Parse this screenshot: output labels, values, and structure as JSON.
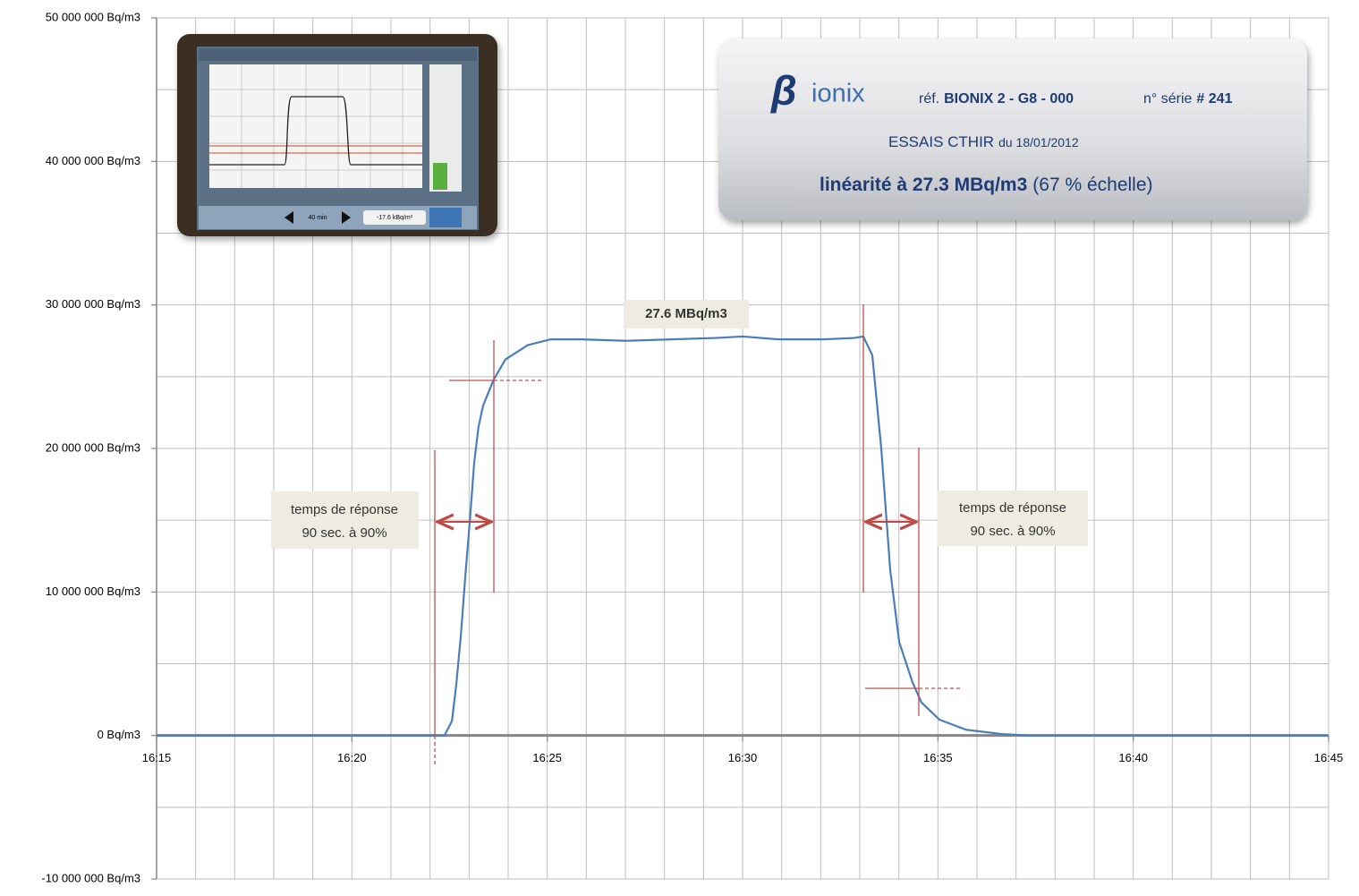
{
  "chart_data": {
    "type": "line",
    "x": [
      975,
      982.37,
      982.56,
      982.67,
      982.79,
      982.9,
      983.02,
      983.13,
      983.24,
      983.36,
      983.63,
      983.93,
      984.5,
      985.08,
      985.88,
      987.02,
      988.17,
      989.31,
      990.0,
      990.92,
      992.06,
      992.86,
      993.09,
      993.32,
      993.55,
      993.78,
      994.01,
      994.35,
      994.58,
      995.04,
      995.72,
      996.64,
      997.33,
      1005
    ],
    "series": [
      {
        "color": "#4a7ebb",
        "values": [
          0,
          0,
          1000000,
          3500000,
          7000000,
          11000000,
          15000000,
          19000000,
          21500000,
          23000000,
          24800000,
          26200000,
          27200000,
          27600000,
          27600000,
          27500000,
          27600000,
          27700000,
          27800000,
          27600000,
          27600000,
          27700000,
          27800000,
          26500000,
          20000000,
          11500000,
          6500000,
          3700000,
          2300000,
          1100000,
          400000,
          100000,
          0,
          0
        ]
      }
    ],
    "xlim": [
      975,
      1005
    ],
    "xticks": [
      {
        "value": 975,
        "label": "16:15"
      },
      {
        "value": 980,
        "label": "16:20"
      },
      {
        "value": 985,
        "label": "16:25"
      },
      {
        "value": 990,
        "label": "16:30"
      },
      {
        "value": 995,
        "label": "16:35"
      },
      {
        "value": 1000,
        "label": "16:40"
      },
      {
        "value": 1005,
        "label": "16:45"
      }
    ],
    "ylim": [
      -10000000,
      50000000
    ],
    "yticks": [
      {
        "value": -10000000,
        "label": "-10 000 000 Bq/m3"
      },
      {
        "value": 0,
        "label": "0 Bq/m3"
      },
      {
        "value": 10000000,
        "label": "10 000 000 Bq/m3"
      },
      {
        "value": 20000000,
        "label": "20 000 000 Bq/m3"
      },
      {
        "value": 30000000,
        "label": "30 000 000 Bq/m3"
      },
      {
        "value": 40000000,
        "label": "40 000 000 Bq/m3"
      },
      {
        "value": 50000000,
        "label": "50 000 000 Bq/m3"
      }
    ],
    "grid": true,
    "x_gridlines": [
      975,
      976,
      977,
      978,
      979,
      980,
      981,
      982,
      983,
      984,
      985,
      986,
      987,
      988,
      989,
      990,
      991,
      992,
      993,
      994,
      995,
      996,
      997,
      998,
      999,
      1000,
      1001,
      1002,
      1003,
      1004,
      1005
    ],
    "y_gridlines": [
      -10000000,
      -5000000,
      0,
      5000000,
      10000000,
      15000000,
      20000000,
      25000000,
      30000000,
      35000000,
      40000000,
      45000000,
      50000000
    ],
    "annotations": [
      {
        "text": "27.6 MBq/m3"
      },
      {
        "lines": [
          "temps de réponse",
          "90 sec. à 90%"
        ]
      },
      {
        "lines": [
          "temps de réponse",
          "90 sec. à 90%"
        ]
      }
    ],
    "info_box": {
      "logo_symbol": "β",
      "logo_text": "ionix",
      "ref_label": "réf.",
      "ref": "BIONIX 2 - G8 - 000",
      "serial_label": "n° série",
      "serial": "# 241",
      "test": "ESSAIS CTHIR",
      "date": "du 18/01/2012",
      "linearity": "linéarité à 27.3 MBq/m3",
      "scale": "(67 % échelle)"
    },
    "inset": {
      "span": "40 min",
      "reading": "-17.6 kBq/m³"
    }
  }
}
